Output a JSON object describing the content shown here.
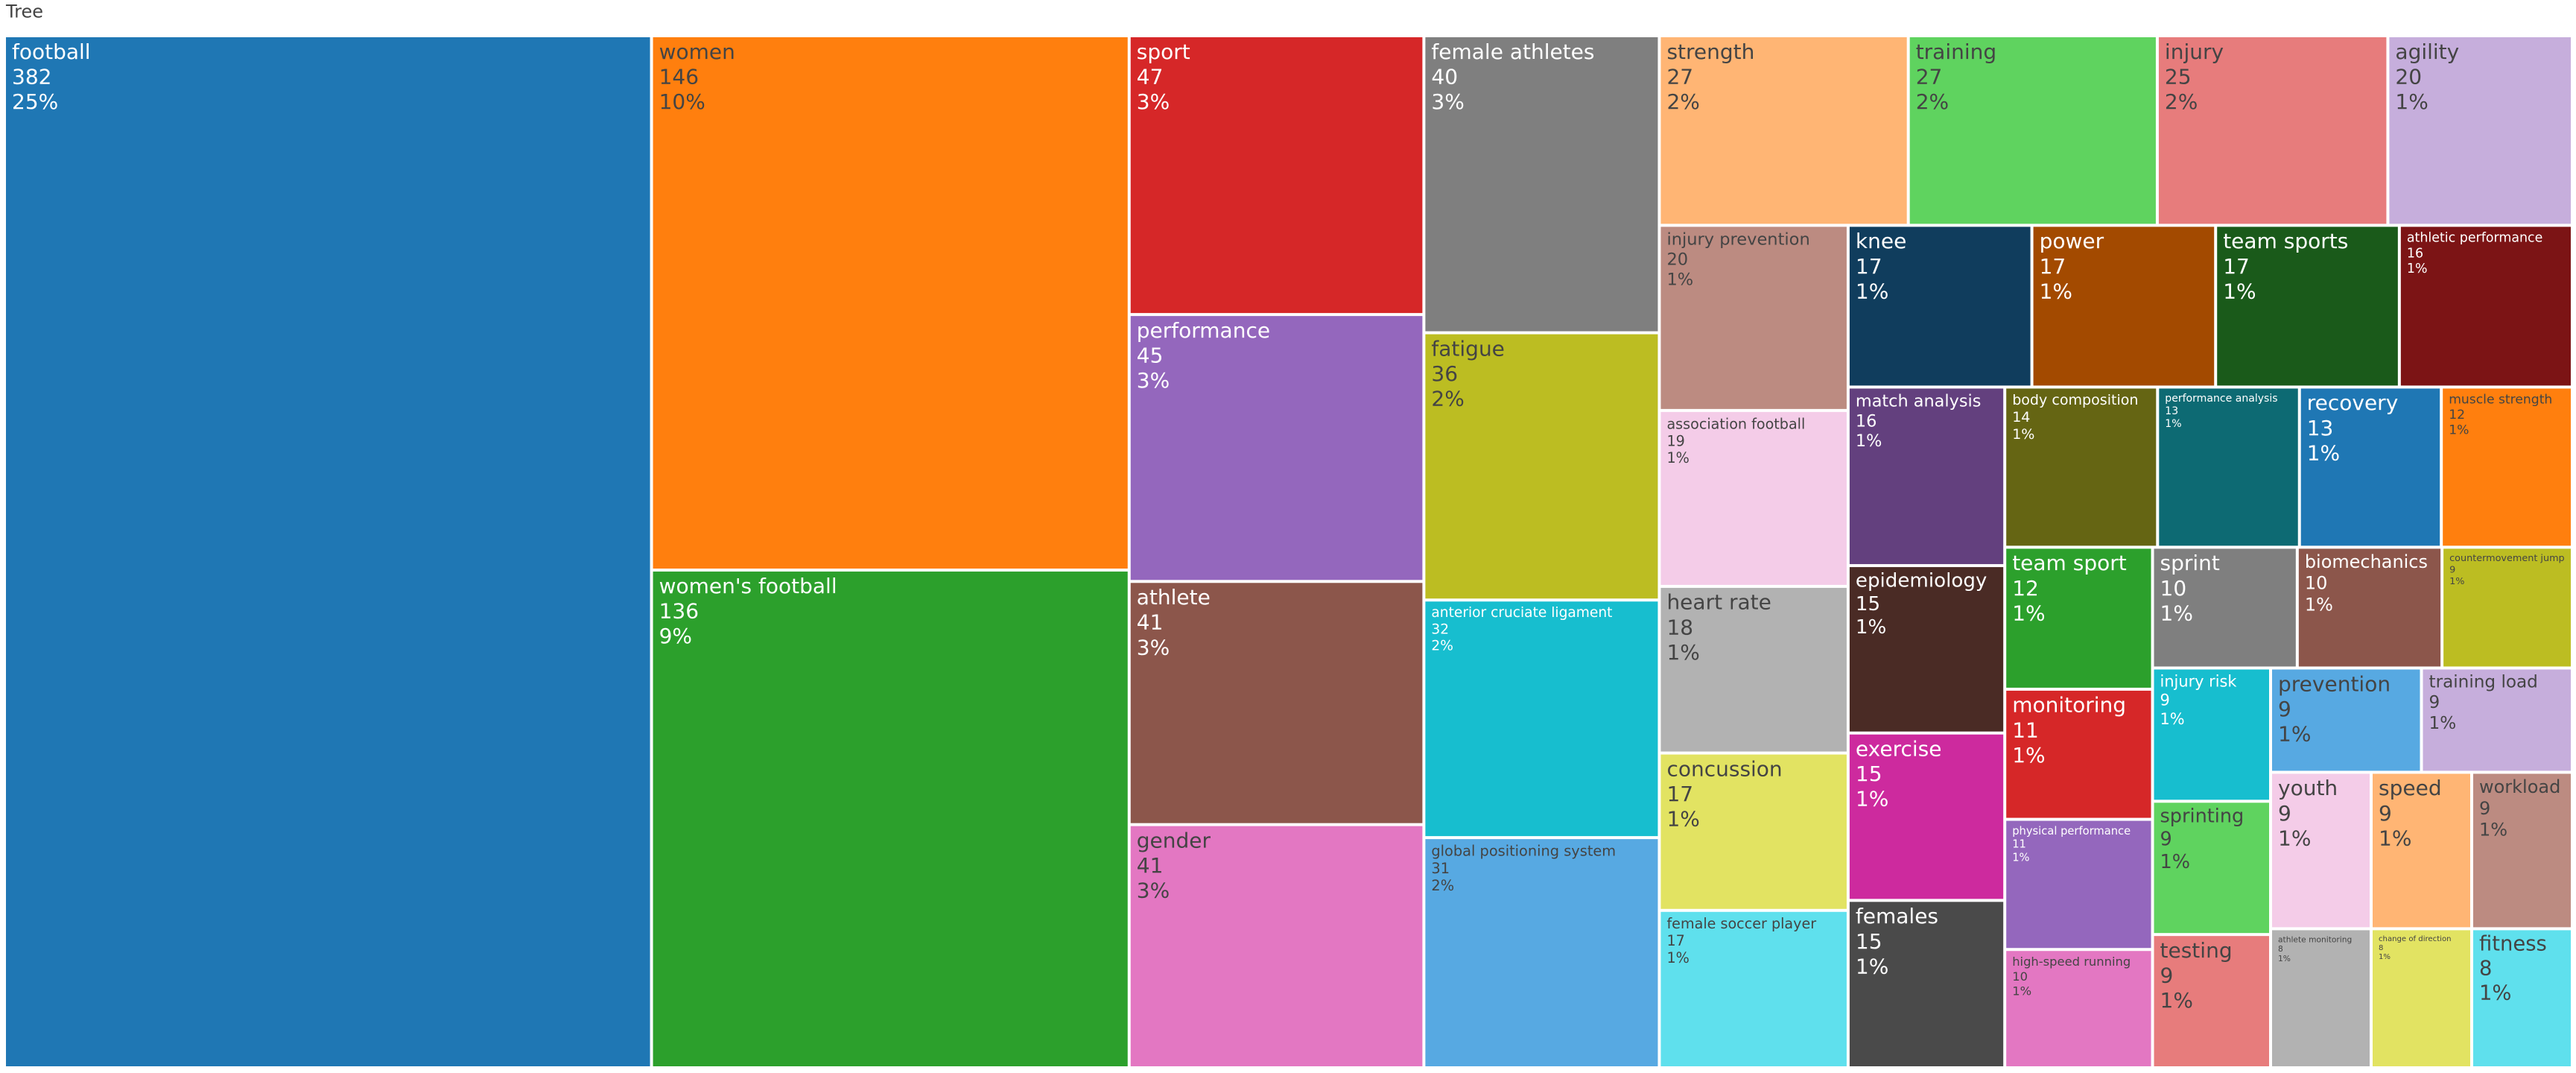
{
  "chart_data": {
    "type": "treemap",
    "title": "Tree",
    "labels": [
      "football",
      "women",
      "women's football",
      "sport",
      "performance",
      "athlete",
      "gender",
      "female athletes",
      "fatigue",
      "anterior cruciate ligament",
      "global positioning system",
      "strength",
      "training",
      "injury",
      "agility",
      "injury prevention",
      "association football",
      "heart rate",
      "concussion",
      "female soccer player",
      "knee",
      "power",
      "team sports",
      "athletic performance",
      "match analysis",
      "epidemiology",
      "exercise",
      "females",
      "body composition",
      "performance analysis",
      "recovery",
      "muscle strength",
      "team sport",
      "monitoring",
      "physical performance",
      "high-speed running",
      "sprint",
      "biomechanics",
      "countermovement jump",
      "injury risk",
      "sprinting",
      "testing",
      "prevention",
      "training load",
      "youth",
      "athlete monitoring",
      "speed",
      "workload",
      "change of direction",
      "fitness"
    ],
    "values": [
      382,
      146,
      136,
      47,
      45,
      41,
      41,
      40,
      36,
      32,
      31,
      27,
      27,
      25,
      20,
      20,
      19,
      18,
      17,
      17,
      17,
      17,
      17,
      16,
      16,
      15,
      15,
      15,
      14,
      13,
      13,
      12,
      12,
      11,
      11,
      10,
      10,
      10,
      9,
      9,
      9,
      9,
      9,
      9,
      9,
      8,
      9,
      9,
      8,
      8
    ],
    "percent_labels": [
      "25%",
      "10%",
      "9%",
      "3%",
      "3%",
      "3%",
      "3%",
      "3%",
      "2%",
      "2%",
      "2%",
      "2%",
      "2%",
      "2%",
      "1%",
      "1%",
      "1%",
      "1%",
      "1%",
      "1%",
      "1%",
      "1%",
      "1%",
      "1%",
      "1%",
      "1%",
      "1%",
      "1%",
      "1%",
      "1%",
      "1%",
      "1%",
      "1%",
      "1%",
      "1%",
      "1%",
      "1%",
      "1%",
      "1%",
      "1%",
      "1%",
      "1%",
      "1%",
      "1%",
      "1%",
      "1%",
      "1%",
      "1%",
      "1%",
      "1%"
    ],
    "colors": [
      "#1f77b4",
      "#ff7f0e",
      "#2ca02c",
      "#d62728",
      "#9467bd",
      "#8c564b",
      "#e377c2",
      "#7f7f7f",
      "#bcbd22",
      "#17becf",
      "#57a9e2",
      "#ffb574",
      "#5fd35f",
      "#e77c7c",
      "#c6aedc",
      "#bc8b81",
      "#f4cce8",
      "#b2b2b2",
      "#e2e362",
      "#5fe0ed",
      "#103d5d",
      "#a34a00",
      "#1a5a1a",
      "#7c1415",
      "#63407e",
      "#4a2b25",
      "#cd2a9e",
      "#4a4a4a",
      "#656513",
      "#0d6a73",
      "#1f77b4",
      "#ff7f0e",
      "#2ca02c",
      "#d62728",
      "#9467bd",
      "#e377c2",
      "#7f7f7f",
      "#8c564b",
      "#bcbd22",
      "#17becf",
      "#5fd35f",
      "#e77c7c",
      "#57a9e2",
      "#c6aedc",
      "#f4cce8",
      "#b2b2b2",
      "#ffb574",
      "#bc8b81",
      "#e2e362",
      "#5fe0ed"
    ]
  }
}
